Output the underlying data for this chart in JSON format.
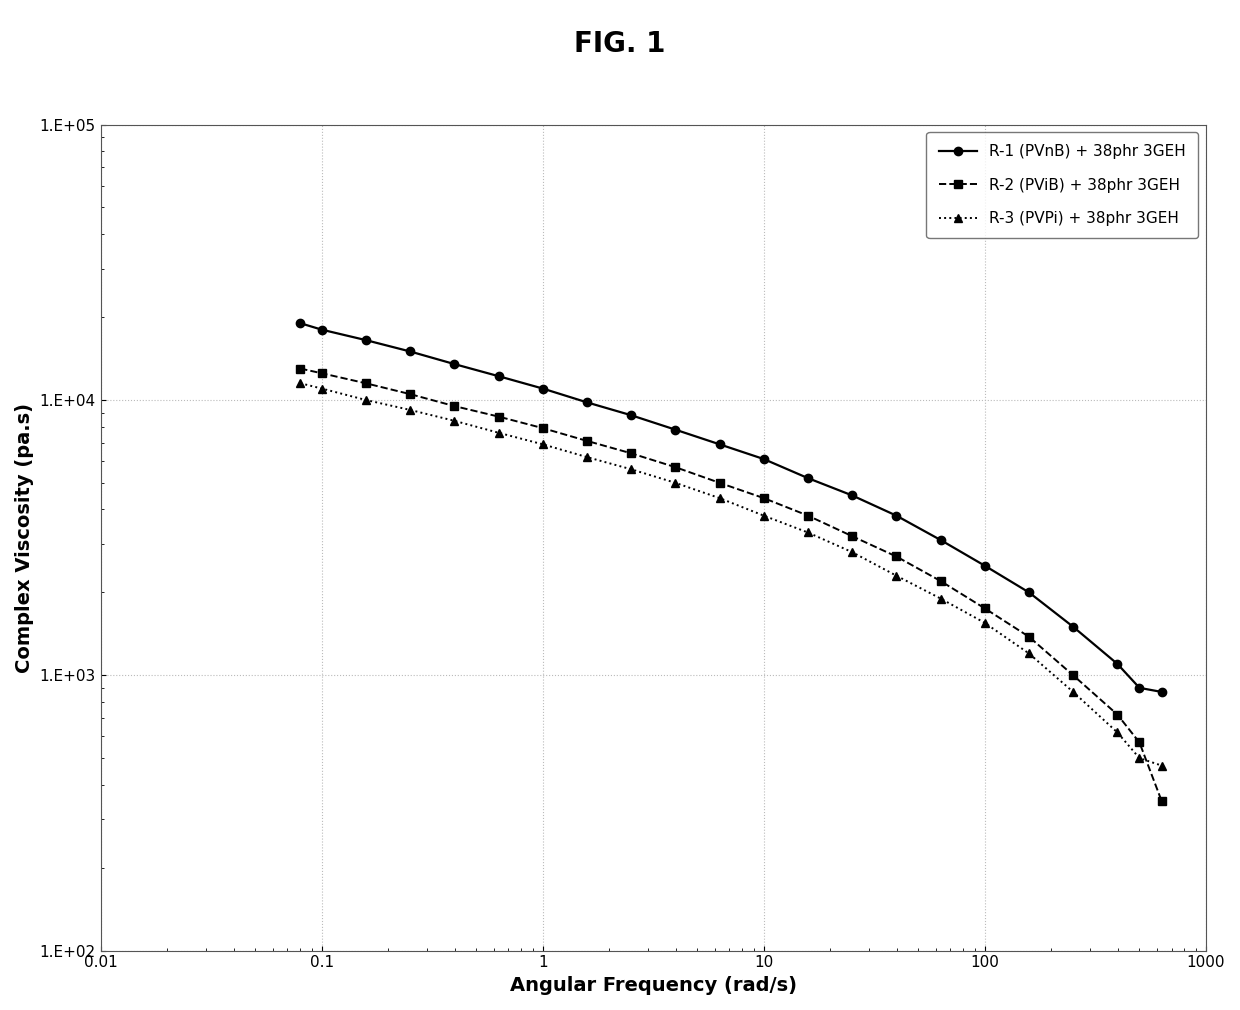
{
  "title": "FIG. 1",
  "xlabel": "Angular Frequency (rad/s)",
  "ylabel": "Complex Viscosity (pa.s)",
  "xlim": [
    0.01,
    1000
  ],
  "ylim": [
    100,
    100000
  ],
  "series": [
    {
      "label": "R-1 (PVnB) + 38phr 3GEH",
      "linestyle": "-",
      "marker": "o",
      "color": "#000000",
      "linewidth": 1.6,
      "markersize": 6,
      "x": [
        0.08,
        0.1,
        0.158,
        0.251,
        0.398,
        0.631,
        1.0,
        1.585,
        2.512,
        3.981,
        6.31,
        10.0,
        15.85,
        25.12,
        39.81,
        63.1,
        100.0,
        158.5,
        251.2,
        398.1,
        501.2,
        631.0
      ],
      "y": [
        19000,
        18000,
        16500,
        15000,
        13500,
        12200,
        11000,
        9800,
        8800,
        7800,
        6900,
        6100,
        5200,
        4500,
        3800,
        3100,
        2500,
        2000,
        1500,
        1100,
        900,
        870
      ]
    },
    {
      "label": "R-2 (PViB) + 38phr 3GEH",
      "linestyle": "--",
      "marker": "s",
      "color": "#000000",
      "linewidth": 1.4,
      "markersize": 6,
      "x": [
        0.08,
        0.1,
        0.158,
        0.251,
        0.398,
        0.631,
        1.0,
        1.585,
        2.512,
        3.981,
        6.31,
        10.0,
        15.85,
        25.12,
        39.81,
        63.1,
        100.0,
        158.5,
        251.2,
        398.1,
        501.2,
        631.0
      ],
      "y": [
        13000,
        12500,
        11500,
        10500,
        9500,
        8700,
        7900,
        7100,
        6400,
        5700,
        5000,
        4400,
        3800,
        3200,
        2700,
        2200,
        1750,
        1380,
        1000,
        720,
        570,
        350
      ]
    },
    {
      "label": "R-3 (PVPi) + 38phr 3GEH",
      "linestyle": ":",
      "marker": "^",
      "color": "#000000",
      "linewidth": 1.4,
      "markersize": 6,
      "x": [
        0.08,
        0.1,
        0.158,
        0.251,
        0.398,
        0.631,
        1.0,
        1.585,
        2.512,
        3.981,
        6.31,
        10.0,
        15.85,
        25.12,
        39.81,
        63.1,
        100.0,
        158.5,
        251.2,
        398.1,
        501.2,
        631.0
      ],
      "y": [
        11500,
        11000,
        10000,
        9200,
        8400,
        7600,
        6900,
        6200,
        5600,
        5000,
        4400,
        3800,
        3300,
        2800,
        2300,
        1900,
        1550,
        1200,
        870,
        620,
        500,
        470
      ]
    }
  ],
  "legend_loc": "upper right",
  "background_color": "#ffffff",
  "grid_color": "#bbbbbb"
}
